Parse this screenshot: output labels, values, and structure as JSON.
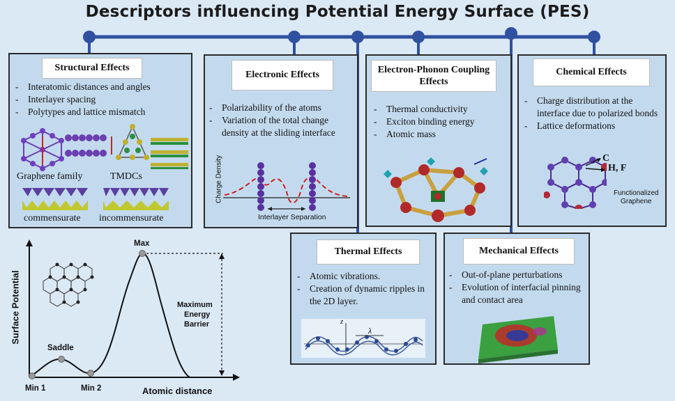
{
  "title": "Descriptors influencing Potential Energy Surface (PES)",
  "colors": {
    "background": "#dbe9f5",
    "box": "#c3daee",
    "connector": "#3050a0"
  },
  "structural": {
    "heading": "Structural Effects",
    "items": [
      "Interatomic distances and angles",
      "Interlayer spacing",
      "Polytypes and lattice mismatch"
    ],
    "graphene_label": "Graphene family",
    "tmdc_label": "TMDCs",
    "commensurate_label": "commensurate",
    "incommensurate_label": "incommensurate"
  },
  "electronic": {
    "heading": "Electronic Effects",
    "items": [
      "Polarizability of the atoms",
      "Variation of the total change density at the sliding interface"
    ],
    "y_axis_label": "Charge Density",
    "x_axis_label": "Interlayer Separation"
  },
  "electron_phonon": {
    "heading": "Electron-Phonon Coupling Effects",
    "items": [
      "Thermal conductivity",
      "Exciton binding energy",
      "Atomic mass"
    ]
  },
  "chemical": {
    "heading": "Chemical Effects",
    "items": [
      "Charge distribution at the interface due to polarized bonds",
      "Lattice deformations"
    ],
    "label_c": "C",
    "label_hf": "H, F",
    "caption_line1": "Functionalized",
    "caption_line2": "Graphene"
  },
  "thermal": {
    "heading": "Thermal Effects",
    "items": [
      "Atomic vibrations.",
      "Creation of dynamic ripples in the 2D layer."
    ],
    "axis_z": "z",
    "lambda": "λ"
  },
  "mechanical": {
    "heading": "Mechanical Effects",
    "items": [
      "Out-of-plane perturbations",
      "Evolution of interfacial pinning and contact area"
    ]
  },
  "pes": {
    "y_label": "Surface Potential",
    "x_label": "Atomic distance",
    "max_label": "Max",
    "saddle_label": "Saddle",
    "min1_label": "Min 1",
    "min2_label": "Min 2",
    "barrier_line1": "Maximum",
    "barrier_line2": "Energy",
    "barrier_line3": "Barrier"
  }
}
